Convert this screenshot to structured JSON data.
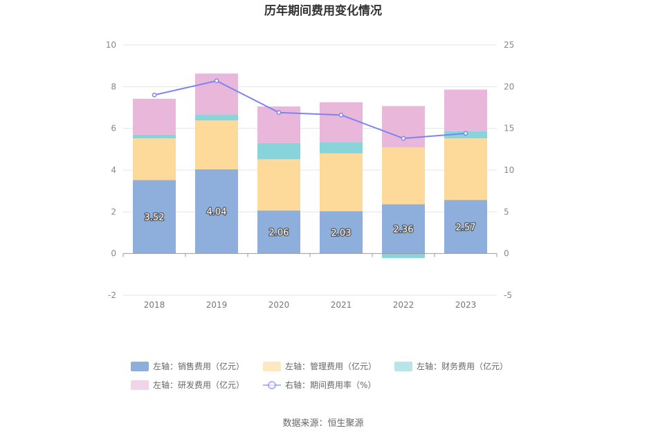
{
  "chart_data": {
    "type": "bar",
    "title": "历年期间费用变化情况",
    "categories": [
      "2018",
      "2019",
      "2020",
      "2021",
      "2022",
      "2023"
    ],
    "stacked": true,
    "left_axis": {
      "ylim": [
        -2,
        10
      ],
      "ticks": [
        "-2",
        "0",
        "2",
        "4",
        "6",
        "8",
        "10"
      ]
    },
    "right_axis": {
      "ylim": [
        -5,
        25
      ],
      "ticks": [
        "-5",
        "0",
        "5",
        "10",
        "15",
        "20",
        "25"
      ]
    },
    "grid": true,
    "series": [
      {
        "name": "左轴：销售费用（亿元）",
        "type": "bar",
        "axis": "left",
        "color": "#8eaedb",
        "values": [
          3.52,
          4.04,
          2.06,
          2.03,
          2.36,
          2.57
        ],
        "labels": [
          "3.52",
          "4.04",
          "2.06",
          "2.03",
          "2.36",
          "2.57"
        ]
      },
      {
        "name": "左轴：管理费用（亿元）",
        "type": "bar",
        "axis": "left",
        "color": "#fdd99a",
        "values": [
          2.0,
          2.34,
          2.46,
          2.77,
          2.73,
          2.95
        ]
      },
      {
        "name": "左轴：财务费用（亿元）",
        "type": "bar",
        "axis": "left",
        "color": "#87d5da",
        "values": [
          0.18,
          0.27,
          0.78,
          0.55,
          -0.22,
          0.34
        ]
      },
      {
        "name": "左轴：研发费用（亿元）",
        "type": "bar",
        "axis": "left",
        "color": "#e8b7d9",
        "values": [
          1.72,
          1.98,
          1.75,
          1.9,
          1.98,
          2.0
        ]
      },
      {
        "name": "右轴：期间费用率（%）",
        "type": "line",
        "axis": "right",
        "color": "#7b84f0",
        "values": [
          19.0,
          20.7,
          16.9,
          16.6,
          13.8,
          14.4
        ]
      }
    ],
    "legend": {
      "placement": "bottom"
    }
  },
  "source": "数据来源：恒生聚源"
}
